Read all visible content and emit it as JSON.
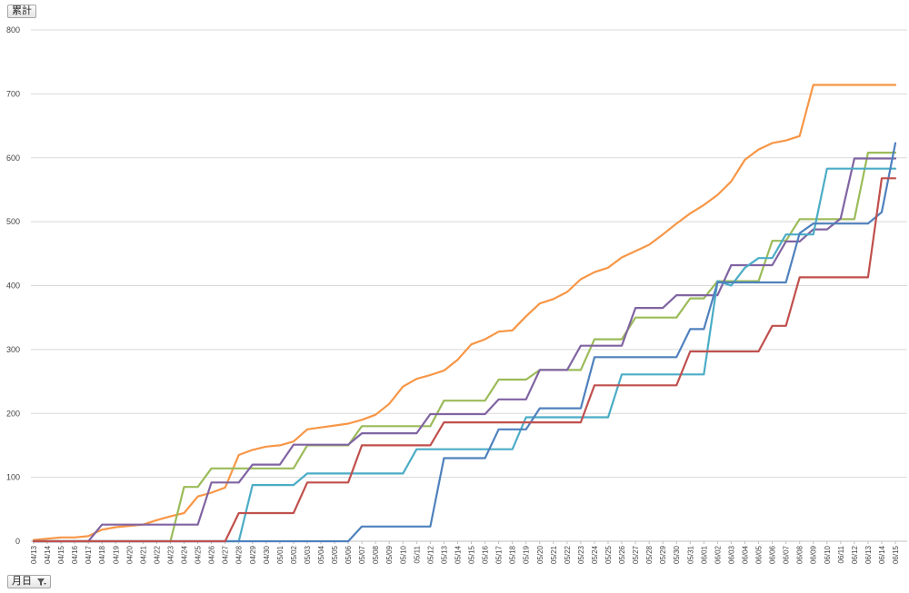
{
  "field_buttons": {
    "value_field": "累計",
    "axis_field": "月日"
  },
  "chart_data": {
    "type": "line",
    "ylim": [
      0,
      800
    ],
    "yticks": [
      0,
      100,
      200,
      300,
      400,
      500,
      600,
      700,
      800
    ],
    "grid": true,
    "legend": "none",
    "categories": [
      "04/13",
      "04/14",
      "04/15",
      "04/16",
      "04/17",
      "04/18",
      "04/19",
      "04/20",
      "04/21",
      "04/22",
      "04/23",
      "04/24",
      "04/25",
      "04/26",
      "04/27",
      "04/28",
      "04/29",
      "04/30",
      "05/01",
      "05/02",
      "05/03",
      "05/04",
      "05/05",
      "05/06",
      "05/07",
      "05/08",
      "05/09",
      "05/10",
      "05/11",
      "05/12",
      "05/13",
      "05/14",
      "05/15",
      "05/16",
      "05/17",
      "05/18",
      "05/19",
      "05/20",
      "05/21",
      "05/22",
      "05/23",
      "05/24",
      "05/25",
      "05/26",
      "05/27",
      "05/28",
      "05/29",
      "05/30",
      "05/31",
      "06/01",
      "06/02",
      "06/03",
      "06/04",
      "06/05",
      "06/06",
      "06/07",
      "06/08",
      "06/09",
      "06/10",
      "06/11",
      "06/12",
      "06/13",
      "06/14",
      "06/15"
    ],
    "series": [
      {
        "color": "#f79646",
        "values": [
          2,
          4,
          6,
          6,
          8,
          18,
          22,
          24,
          26,
          33,
          39,
          44,
          70,
          76,
          84,
          135,
          143,
          148,
          150,
          156,
          175,
          178,
          181,
          184,
          190,
          198,
          215,
          242,
          254,
          260,
          267,
          284,
          308,
          316,
          328,
          330,
          352,
          372,
          379,
          390,
          410,
          421,
          428,
          444,
          454,
          464,
          480,
          497,
          513,
          526,
          542,
          563,
          597,
          613,
          623,
          627,
          634,
          714,
          714,
          714,
          714,
          714,
          714,
          714
        ]
      },
      {
        "color": "#9bbb59",
        "values": [
          0,
          0,
          0,
          0,
          0,
          0,
          0,
          0,
          0,
          0,
          0,
          85,
          85,
          114,
          114,
          114,
          114,
          114,
          114,
          114,
          150,
          150,
          150,
          150,
          180,
          180,
          180,
          180,
          180,
          180,
          220,
          220,
          220,
          220,
          253,
          253,
          253,
          268,
          268,
          268,
          268,
          316,
          316,
          316,
          350,
          350,
          350,
          350,
          380,
          380,
          407,
          407,
          407,
          407,
          470,
          470,
          504,
          504,
          504,
          504,
          504,
          608,
          608,
          608
        ]
      },
      {
        "color": "#8064a2",
        "values": [
          0,
          0,
          0,
          0,
          0,
          26,
          26,
          26,
          26,
          26,
          26,
          26,
          26,
          92,
          92,
          92,
          120,
          120,
          120,
          151,
          151,
          151,
          151,
          151,
          169,
          169,
          169,
          169,
          169,
          199,
          199,
          199,
          199,
          199,
          222,
          222,
          222,
          268,
          268,
          268,
          306,
          306,
          306,
          306,
          365,
          365,
          365,
          385,
          385,
          385,
          385,
          432,
          432,
          432,
          432,
          469,
          469,
          488,
          488,
          505,
          599,
          599,
          599,
          599
        ]
      },
      {
        "color": "#4bacc6",
        "values": [
          0,
          0,
          0,
          0,
          0,
          0,
          0,
          0,
          0,
          0,
          0,
          0,
          0,
          0,
          0,
          0,
          88,
          88,
          88,
          88,
          106,
          106,
          106,
          106,
          106,
          106,
          106,
          106,
          144,
          144,
          144,
          144,
          144,
          144,
          144,
          144,
          194,
          194,
          194,
          194,
          194,
          194,
          194,
          261,
          261,
          261,
          261,
          261,
          261,
          261,
          407,
          400,
          428,
          443,
          443,
          480,
          480,
          480,
          583,
          583,
          583,
          583,
          583,
          583
        ]
      },
      {
        "color": "#4f81bd",
        "values": [
          0,
          0,
          0,
          0,
          0,
          0,
          0,
          0,
          0,
          0,
          0,
          0,
          0,
          0,
          0,
          0,
          0,
          0,
          0,
          0,
          0,
          0,
          0,
          0,
          23,
          23,
          23,
          23,
          23,
          23,
          130,
          130,
          130,
          130,
          175,
          175,
          175,
          208,
          208,
          208,
          208,
          288,
          288,
          288,
          288,
          288,
          288,
          288,
          332,
          332,
          405,
          405,
          405,
          405,
          405,
          405,
          482,
          497,
          497,
          497,
          497,
          497,
          515,
          623
        ]
      },
      {
        "color": "#c0504d",
        "values": [
          0,
          0,
          0,
          0,
          0,
          0,
          0,
          0,
          0,
          0,
          0,
          0,
          0,
          0,
          0,
          44,
          44,
          44,
          44,
          44,
          92,
          92,
          92,
          92,
          150,
          150,
          150,
          150,
          150,
          150,
          186,
          186,
          186,
          186,
          186,
          186,
          186,
          186,
          186,
          186,
          186,
          244,
          244,
          244,
          244,
          244,
          244,
          244,
          297,
          297,
          297,
          297,
          297,
          297,
          337,
          337,
          413,
          413,
          413,
          413,
          413,
          413,
          568,
          568
        ]
      }
    ]
  }
}
